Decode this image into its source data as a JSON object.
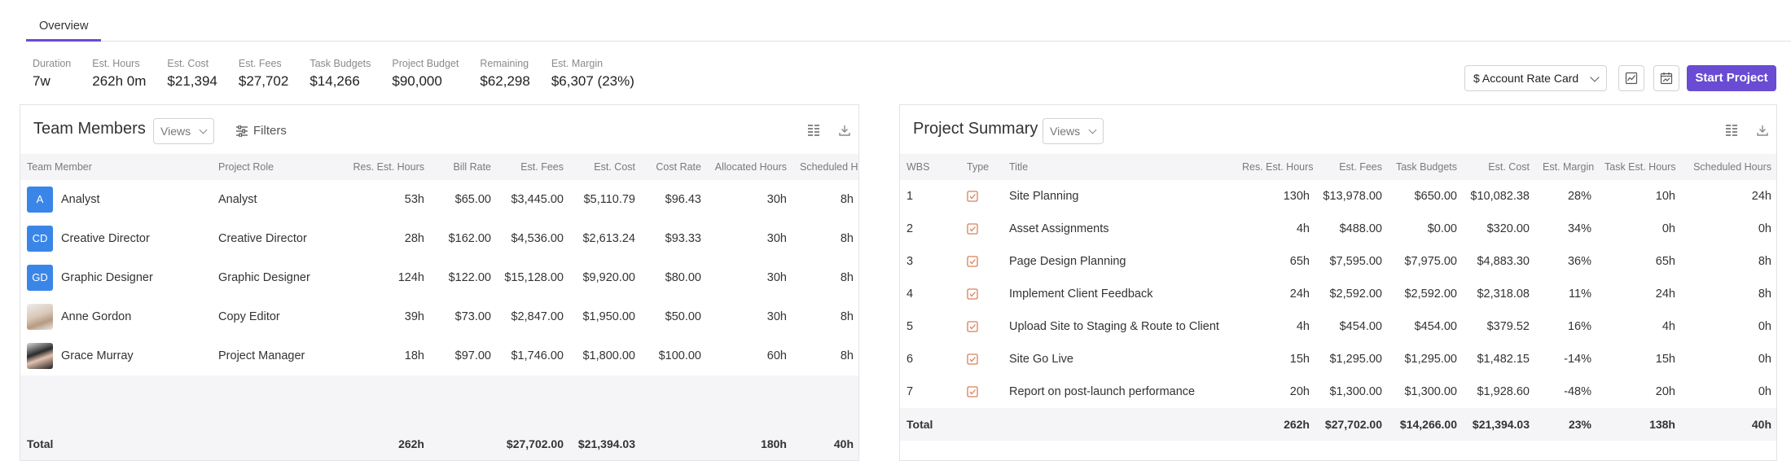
{
  "tabs": [
    {
      "label": "Overview"
    }
  ],
  "stats": [
    {
      "label": "Duration",
      "value": "7w"
    },
    {
      "label": "Est. Hours",
      "value": "262h 0m"
    },
    {
      "label": "Est. Cost",
      "value": "$21,394"
    },
    {
      "label": "Est. Fees",
      "value": "$27,702"
    },
    {
      "label": "Task Budgets",
      "value": "$14,266"
    },
    {
      "label": "Project Budget",
      "value": "$90,000"
    },
    {
      "label": "Remaining",
      "value": "$62,298"
    },
    {
      "label": "Est. Margin",
      "value": "$6,307 (23%)"
    }
  ],
  "controls": {
    "rate_card": "$ Account Rate Card",
    "start_project": "Start Project",
    "accent": "#6a4bd3"
  },
  "team_members": {
    "title": "Team Members",
    "views_label": "Views",
    "filters_label": "Filters",
    "columns": [
      "Team Member",
      "Project Role",
      "Res. Est. Hours",
      "Bill Rate",
      "Est. Fees",
      "Est. Cost",
      "Cost Rate",
      "Allocated Hours",
      "Scheduled Hours"
    ],
    "rows": [
      {
        "avatar": "A",
        "name": "Analyst",
        "role": "Analyst",
        "hours": "53h",
        "bill_rate": "$65.00",
        "fees": "$3,445.00",
        "cost": "$5,110.79",
        "cost_rate": "$96.43",
        "allocated": "30h",
        "scheduled": "8h"
      },
      {
        "avatar": "CD",
        "name": "Creative Director",
        "role": "Creative Director",
        "hours": "28h",
        "bill_rate": "$162.00",
        "fees": "$4,536.00",
        "cost": "$2,613.24",
        "cost_rate": "$93.33",
        "allocated": "30h",
        "scheduled": "8h"
      },
      {
        "avatar": "GD",
        "name": "Graphic Designer",
        "role": "Graphic Designer",
        "hours": "124h",
        "bill_rate": "$122.00",
        "fees": "$15,128.00",
        "cost": "$9,920.00",
        "cost_rate": "$80.00",
        "allocated": "30h",
        "scheduled": "8h"
      },
      {
        "avatar": "",
        "name": "Anne Gordon",
        "role": "Copy Editor",
        "hours": "39h",
        "bill_rate": "$73.00",
        "fees": "$2,847.00",
        "cost": "$1,950.00",
        "cost_rate": "$50.00",
        "allocated": "30h",
        "scheduled": "8h"
      },
      {
        "avatar": "",
        "name": "Grace Murray",
        "role": "Project Manager",
        "hours": "18h",
        "bill_rate": "$97.00",
        "fees": "$1,746.00",
        "cost": "$1,800.00",
        "cost_rate": "$100.00",
        "allocated": "60h",
        "scheduled": "8h"
      }
    ],
    "total": {
      "label": "Total",
      "hours": "262h",
      "fees": "$27,702.00",
      "cost": "$21,394.03",
      "allocated": "180h",
      "scheduled": "40h"
    }
  },
  "project_summary": {
    "title": "Project Summary",
    "views_label": "Views",
    "columns": [
      "WBS",
      "Type",
      "Title",
      "Res. Est. Hours",
      "Est. Fees",
      "Task Budgets",
      "Est. Cost",
      "Est. Margin",
      "Task Est. Hours",
      "Scheduled Hours"
    ],
    "rows": [
      {
        "wbs": "1",
        "title": "Site Planning",
        "hours": "130h",
        "fees": "$13,978.00",
        "budget": "$650.00",
        "cost": "$10,082.38",
        "margin": "28%",
        "task_hours": "10h",
        "scheduled": "24h"
      },
      {
        "wbs": "2",
        "title": "Asset Assignments",
        "hours": "4h",
        "fees": "$488.00",
        "budget": "$0.00",
        "cost": "$320.00",
        "margin": "34%",
        "task_hours": "0h",
        "scheduled": "0h"
      },
      {
        "wbs": "3",
        "title": "Page Design Planning",
        "hours": "65h",
        "fees": "$7,595.00",
        "budget": "$7,975.00",
        "cost": "$4,883.30",
        "margin": "36%",
        "task_hours": "65h",
        "scheduled": "8h"
      },
      {
        "wbs": "4",
        "title": "Implement Client Feedback",
        "hours": "24h",
        "fees": "$2,592.00",
        "budget": "$2,592.00",
        "cost": "$2,318.08",
        "margin": "11%",
        "task_hours": "24h",
        "scheduled": "8h"
      },
      {
        "wbs": "5",
        "title": "Upload Site to Staging & Route to Client",
        "hours": "4h",
        "fees": "$454.00",
        "budget": "$454.00",
        "cost": "$379.52",
        "margin": "16%",
        "task_hours": "4h",
        "scheduled": "0h"
      },
      {
        "wbs": "6",
        "title": "Site Go Live",
        "hours": "15h",
        "fees": "$1,295.00",
        "budget": "$1,295.00",
        "cost": "$1,482.15",
        "margin": "-14%",
        "task_hours": "15h",
        "scheduled": "0h"
      },
      {
        "wbs": "7",
        "title": "Report on post-launch performance",
        "hours": "20h",
        "fees": "$1,300.00",
        "budget": "$1,300.00",
        "cost": "$1,928.60",
        "margin": "-48%",
        "task_hours": "20h",
        "scheduled": "0h"
      }
    ],
    "total": {
      "label": "Total",
      "hours": "262h",
      "fees": "$27,702.00",
      "budget": "$14,266.00",
      "cost": "$21,394.03",
      "margin": "23%",
      "task_hours": "138h",
      "scheduled": "40h"
    }
  }
}
